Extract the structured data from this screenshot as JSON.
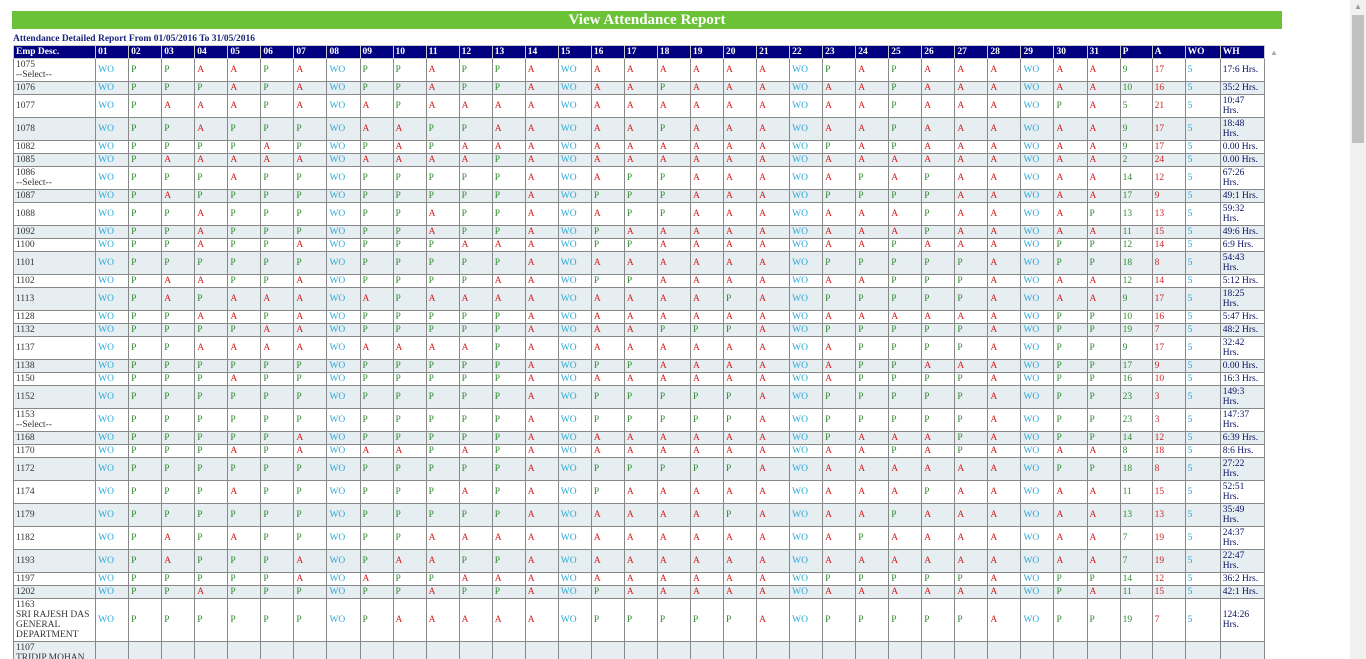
{
  "title": "View Attendance Report",
  "caption": "Attendance Detailed Report From 01/05/2016 To 31/05/2016",
  "columns": [
    "Emp Desc.",
    "01",
    "02",
    "03",
    "04",
    "05",
    "06",
    "07",
    "08",
    "09",
    "10",
    "11",
    "12",
    "13",
    "14",
    "15",
    "16",
    "17",
    "18",
    "19",
    "20",
    "21",
    "22",
    "23",
    "24",
    "25",
    "26",
    "27",
    "28",
    "29",
    "30",
    "31",
    "P",
    "A",
    "WO",
    "WH"
  ],
  "colors": {
    "title_bar": "#6cc236",
    "header": "#000080",
    "WO": "#2aa7d6",
    "P": "#2e8b2e",
    "A": "#d32222",
    "wh": "#0a1060"
  },
  "rows": [
    {
      "emp": [
        "1075",
        "--Select--"
      ],
      "days": [
        "WO",
        "P",
        "P",
        "A",
        "A",
        "P",
        "A",
        "WO",
        "P",
        "P",
        "A",
        "P",
        "P",
        "A",
        "WO",
        "A",
        "A",
        "A",
        "A",
        "A",
        "A",
        "WO",
        "P",
        "A",
        "P",
        "A",
        "A",
        "A",
        "WO",
        "A",
        "A"
      ],
      "p": "9",
      "a": "17",
      "wo": "5",
      "wh": "17:6 Hrs."
    },
    {
      "emp": [
        "1076"
      ],
      "days": [
        "WO",
        "P",
        "P",
        "P",
        "A",
        "P",
        "A",
        "WO",
        "P",
        "P",
        "A",
        "P",
        "P",
        "A",
        "WO",
        "A",
        "A",
        "P",
        "A",
        "A",
        "A",
        "WO",
        "A",
        "A",
        "P",
        "A",
        "A",
        "A",
        "WO",
        "A",
        "A"
      ],
      "p": "10",
      "a": "16",
      "wo": "5",
      "wh": "35:2 Hrs."
    },
    {
      "emp": [
        "1077"
      ],
      "days": [
        "WO",
        "P",
        "A",
        "A",
        "A",
        "P",
        "A",
        "WO",
        "A",
        "P",
        "A",
        "A",
        "A",
        "A",
        "WO",
        "A",
        "A",
        "A",
        "A",
        "A",
        "A",
        "WO",
        "A",
        "A",
        "P",
        "A",
        "A",
        "A",
        "WO",
        "P",
        "A"
      ],
      "p": "5",
      "a": "21",
      "wo": "5",
      "wh": "10:47 Hrs."
    },
    {
      "emp": [
        "1078"
      ],
      "days": [
        "WO",
        "P",
        "P",
        "A",
        "P",
        "P",
        "P",
        "WO",
        "A",
        "A",
        "P",
        "P",
        "A",
        "A",
        "WO",
        "A",
        "A",
        "P",
        "A",
        "A",
        "A",
        "WO",
        "A",
        "A",
        "P",
        "A",
        "A",
        "A",
        "WO",
        "A",
        "A"
      ],
      "p": "9",
      "a": "17",
      "wo": "5",
      "wh": "18:48 Hrs."
    },
    {
      "emp": [
        "1082"
      ],
      "days": [
        "WO",
        "P",
        "P",
        "P",
        "P",
        "A",
        "P",
        "WO",
        "P",
        "A",
        "P",
        "A",
        "A",
        "A",
        "WO",
        "A",
        "A",
        "A",
        "A",
        "A",
        "A",
        "WO",
        "P",
        "A",
        "P",
        "A",
        "A",
        "A",
        "WO",
        "A",
        "A"
      ],
      "p": "9",
      "a": "17",
      "wo": "5",
      "wh": "0.00 Hrs."
    },
    {
      "emp": [
        "1085"
      ],
      "days": [
        "WO",
        "P",
        "A",
        "A",
        "A",
        "A",
        "A",
        "WO",
        "A",
        "A",
        "A",
        "A",
        "P",
        "A",
        "WO",
        "A",
        "A",
        "A",
        "A",
        "A",
        "A",
        "WO",
        "A",
        "A",
        "A",
        "A",
        "A",
        "A",
        "WO",
        "A",
        "A"
      ],
      "p": "2",
      "a": "24",
      "wo": "5",
      "wh": "0.00 Hrs."
    },
    {
      "emp": [
        "1086",
        "--Select--"
      ],
      "days": [
        "WO",
        "P",
        "P",
        "P",
        "A",
        "P",
        "P",
        "WO",
        "P",
        "P",
        "P",
        "P",
        "P",
        "A",
        "WO",
        "A",
        "P",
        "P",
        "A",
        "A",
        "A",
        "WO",
        "A",
        "P",
        "A",
        "P",
        "A",
        "A",
        "WO",
        "A",
        "A"
      ],
      "p": "14",
      "a": "12",
      "wo": "5",
      "wh": "67:26 Hrs."
    },
    {
      "emp": [
        "1087"
      ],
      "days": [
        "WO",
        "P",
        "A",
        "P",
        "P",
        "P",
        "P",
        "WO",
        "P",
        "P",
        "P",
        "P",
        "P",
        "A",
        "WO",
        "P",
        "P",
        "P",
        "A",
        "A",
        "A",
        "WO",
        "P",
        "P",
        "P",
        "P",
        "A",
        "A",
        "WO",
        "A",
        "A"
      ],
      "p": "17",
      "a": "9",
      "wo": "5",
      "wh": "49:1 Hrs."
    },
    {
      "emp": [
        "1088"
      ],
      "days": [
        "WO",
        "P",
        "P",
        "A",
        "P",
        "P",
        "P",
        "WO",
        "P",
        "P",
        "A",
        "P",
        "P",
        "A",
        "WO",
        "A",
        "P",
        "P",
        "A",
        "A",
        "A",
        "WO",
        "A",
        "A",
        "A",
        "P",
        "A",
        "A",
        "WO",
        "A",
        "P"
      ],
      "p": "13",
      "a": "13",
      "wo": "5",
      "wh": "59:32 Hrs."
    },
    {
      "emp": [
        "1092"
      ],
      "days": [
        "WO",
        "P",
        "P",
        "A",
        "P",
        "P",
        "P",
        "WO",
        "P",
        "P",
        "A",
        "P",
        "P",
        "A",
        "WO",
        "P",
        "A",
        "A",
        "A",
        "A",
        "A",
        "WO",
        "A",
        "A",
        "A",
        "P",
        "A",
        "A",
        "WO",
        "A",
        "A"
      ],
      "p": "11",
      "a": "15",
      "wo": "5",
      "wh": "49:6 Hrs."
    },
    {
      "emp": [
        "1100"
      ],
      "days": [
        "WO",
        "P",
        "P",
        "A",
        "P",
        "P",
        "A",
        "WO",
        "P",
        "P",
        "P",
        "A",
        "A",
        "A",
        "WO",
        "P",
        "P",
        "A",
        "A",
        "A",
        "A",
        "WO",
        "A",
        "A",
        "P",
        "A",
        "A",
        "A",
        "WO",
        "P",
        "P"
      ],
      "p": "12",
      "a": "14",
      "wo": "5",
      "wh": "6:9 Hrs."
    },
    {
      "emp": [
        "1101"
      ],
      "days": [
        "WO",
        "P",
        "P",
        "P",
        "P",
        "P",
        "P",
        "WO",
        "P",
        "P",
        "P",
        "P",
        "P",
        "A",
        "WO",
        "A",
        "A",
        "A",
        "A",
        "A",
        "A",
        "WO",
        "P",
        "P",
        "P",
        "P",
        "P",
        "A",
        "WO",
        "P",
        "P"
      ],
      "p": "18",
      "a": "8",
      "wo": "5",
      "wh": "54:43 Hrs."
    },
    {
      "emp": [
        "1102"
      ],
      "days": [
        "WO",
        "P",
        "A",
        "A",
        "P",
        "P",
        "A",
        "WO",
        "P",
        "P",
        "P",
        "P",
        "A",
        "A",
        "WO",
        "P",
        "P",
        "A",
        "A",
        "A",
        "A",
        "WO",
        "A",
        "A",
        "P",
        "P",
        "P",
        "A",
        "WO",
        "A",
        "A"
      ],
      "p": "12",
      "a": "14",
      "wo": "5",
      "wh": "5:12 Hrs."
    },
    {
      "emp": [
        "1113"
      ],
      "days": [
        "WO",
        "P",
        "A",
        "P",
        "A",
        "A",
        "A",
        "WO",
        "A",
        "P",
        "A",
        "A",
        "A",
        "A",
        "WO",
        "A",
        "A",
        "A",
        "A",
        "P",
        "A",
        "WO",
        "P",
        "P",
        "P",
        "P",
        "P",
        "A",
        "WO",
        "A",
        "A"
      ],
      "p": "9",
      "a": "17",
      "wo": "5",
      "wh": "18:25 Hrs."
    },
    {
      "emp": [
        "1128"
      ],
      "days": [
        "WO",
        "P",
        "P",
        "A",
        "A",
        "P",
        "A",
        "WO",
        "P",
        "P",
        "P",
        "P",
        "P",
        "A",
        "WO",
        "A",
        "A",
        "A",
        "A",
        "A",
        "A",
        "WO",
        "A",
        "A",
        "A",
        "A",
        "A",
        "A",
        "WO",
        "P",
        "P"
      ],
      "p": "10",
      "a": "16",
      "wo": "5",
      "wh": "5:47 Hrs."
    },
    {
      "emp": [
        "1132"
      ],
      "days": [
        "WO",
        "P",
        "P",
        "P",
        "P",
        "A",
        "A",
        "WO",
        "P",
        "P",
        "P",
        "P",
        "P",
        "A",
        "WO",
        "A",
        "A",
        "P",
        "P",
        "P",
        "A",
        "WO",
        "P",
        "P",
        "P",
        "P",
        "P",
        "A",
        "WO",
        "P",
        "P"
      ],
      "p": "19",
      "a": "7",
      "wo": "5",
      "wh": "48:2 Hrs."
    },
    {
      "emp": [
        "1137"
      ],
      "days": [
        "WO",
        "P",
        "P",
        "A",
        "A",
        "A",
        "A",
        "WO",
        "A",
        "A",
        "A",
        "A",
        "P",
        "A",
        "WO",
        "A",
        "A",
        "A",
        "A",
        "A",
        "A",
        "WO",
        "A",
        "P",
        "P",
        "P",
        "P",
        "A",
        "WO",
        "P",
        "P"
      ],
      "p": "9",
      "a": "17",
      "wo": "5",
      "wh": "32:42 Hrs."
    },
    {
      "emp": [
        "1138"
      ],
      "days": [
        "WO",
        "P",
        "P",
        "P",
        "P",
        "P",
        "P",
        "WO",
        "P",
        "P",
        "P",
        "P",
        "P",
        "A",
        "WO",
        "P",
        "P",
        "A",
        "A",
        "A",
        "A",
        "WO",
        "A",
        "P",
        "P",
        "A",
        "A",
        "A",
        "WO",
        "P",
        "P"
      ],
      "p": "17",
      "a": "9",
      "wo": "5",
      "wh": "0.00 Hrs."
    },
    {
      "emp": [
        "1150"
      ],
      "days": [
        "WO",
        "P",
        "P",
        "P",
        "A",
        "P",
        "P",
        "WO",
        "P",
        "P",
        "P",
        "P",
        "P",
        "A",
        "WO",
        "A",
        "A",
        "A",
        "A",
        "A",
        "A",
        "WO",
        "A",
        "P",
        "P",
        "P",
        "P",
        "A",
        "WO",
        "P",
        "P"
      ],
      "p": "16",
      "a": "10",
      "wo": "5",
      "wh": "16:3 Hrs."
    },
    {
      "emp": [
        "1152"
      ],
      "days": [
        "WO",
        "P",
        "P",
        "P",
        "P",
        "P",
        "P",
        "WO",
        "P",
        "P",
        "P",
        "P",
        "P",
        "A",
        "WO",
        "P",
        "P",
        "P",
        "P",
        "P",
        "A",
        "WO",
        "P",
        "P",
        "P",
        "P",
        "P",
        "A",
        "WO",
        "P",
        "P"
      ],
      "p": "23",
      "a": "3",
      "wo": "5",
      "wh": "149:3 Hrs."
    },
    {
      "emp": [
        "1153",
        "--Select--"
      ],
      "days": [
        "WO",
        "P",
        "P",
        "P",
        "P",
        "P",
        "P",
        "WO",
        "P",
        "P",
        "P",
        "P",
        "P",
        "A",
        "WO",
        "P",
        "P",
        "P",
        "P",
        "P",
        "A",
        "WO",
        "P",
        "P",
        "P",
        "P",
        "P",
        "A",
        "WO",
        "P",
        "P"
      ],
      "p": "23",
      "a": "3",
      "wo": "5",
      "wh": "147:37 Hrs."
    },
    {
      "emp": [
        "1168"
      ],
      "days": [
        "WO",
        "P",
        "P",
        "P",
        "P",
        "P",
        "A",
        "WO",
        "P",
        "P",
        "P",
        "P",
        "P",
        "A",
        "WO",
        "A",
        "A",
        "A",
        "A",
        "A",
        "A",
        "WO",
        "P",
        "A",
        "A",
        "A",
        "P",
        "A",
        "WO",
        "P",
        "P"
      ],
      "p": "14",
      "a": "12",
      "wo": "5",
      "wh": "6:39 Hrs."
    },
    {
      "emp": [
        "1170"
      ],
      "days": [
        "WO",
        "P",
        "P",
        "P",
        "A",
        "P",
        "A",
        "WO",
        "A",
        "A",
        "P",
        "A",
        "P",
        "A",
        "WO",
        "A",
        "A",
        "A",
        "A",
        "A",
        "A",
        "WO",
        "A",
        "A",
        "P",
        "A",
        "P",
        "A",
        "WO",
        "A",
        "A"
      ],
      "p": "8",
      "a": "18",
      "wo": "5",
      "wh": "8:6 Hrs."
    },
    {
      "emp": [
        "1172"
      ],
      "days": [
        "WO",
        "P",
        "P",
        "P",
        "P",
        "P",
        "P",
        "WO",
        "P",
        "P",
        "P",
        "P",
        "P",
        "A",
        "WO",
        "P",
        "P",
        "P",
        "P",
        "P",
        "A",
        "WO",
        "A",
        "A",
        "A",
        "A",
        "A",
        "A",
        "WO",
        "P",
        "P"
      ],
      "p": "18",
      "a": "8",
      "wo": "5",
      "wh": "27:22 Hrs."
    },
    {
      "emp": [
        "1174"
      ],
      "days": [
        "WO",
        "P",
        "P",
        "P",
        "A",
        "P",
        "P",
        "WO",
        "P",
        "P",
        "P",
        "A",
        "P",
        "A",
        "WO",
        "P",
        "A",
        "A",
        "A",
        "A",
        "A",
        "WO",
        "A",
        "A",
        "A",
        "P",
        "A",
        "A",
        "WO",
        "A",
        "A"
      ],
      "p": "11",
      "a": "15",
      "wo": "5",
      "wh": "52:51 Hrs."
    },
    {
      "emp": [
        "1179"
      ],
      "days": [
        "WO",
        "P",
        "P",
        "P",
        "P",
        "P",
        "P",
        "WO",
        "P",
        "P",
        "P",
        "P",
        "P",
        "A",
        "WO",
        "A",
        "A",
        "A",
        "A",
        "P",
        "A",
        "WO",
        "A",
        "A",
        "P",
        "A",
        "A",
        "A",
        "WO",
        "A",
        "A"
      ],
      "p": "13",
      "a": "13",
      "wo": "5",
      "wh": "35:49 Hrs."
    },
    {
      "emp": [
        "1182"
      ],
      "days": [
        "WO",
        "P",
        "A",
        "P",
        "A",
        "P",
        "P",
        "WO",
        "P",
        "P",
        "A",
        "A",
        "A",
        "A",
        "WO",
        "A",
        "A",
        "A",
        "A",
        "A",
        "A",
        "WO",
        "A",
        "P",
        "A",
        "A",
        "A",
        "A",
        "WO",
        "A",
        "A"
      ],
      "p": "7",
      "a": "19",
      "wo": "5",
      "wh": "24:37 Hrs."
    },
    {
      "emp": [
        "1193"
      ],
      "days": [
        "WO",
        "P",
        "A",
        "P",
        "P",
        "P",
        "A",
        "WO",
        "P",
        "A",
        "A",
        "P",
        "P",
        "A",
        "WO",
        "A",
        "A",
        "A",
        "A",
        "A",
        "A",
        "WO",
        "A",
        "A",
        "A",
        "A",
        "A",
        "A",
        "WO",
        "A",
        "A"
      ],
      "p": "7",
      "a": "19",
      "wo": "5",
      "wh": "22:47 Hrs."
    },
    {
      "emp": [
        "1197"
      ],
      "days": [
        "WO",
        "P",
        "P",
        "P",
        "P",
        "P",
        "A",
        "WO",
        "A",
        "P",
        "P",
        "A",
        "A",
        "A",
        "WO",
        "A",
        "A",
        "A",
        "A",
        "A",
        "A",
        "WO",
        "P",
        "P",
        "P",
        "P",
        "P",
        "A",
        "WO",
        "P",
        "P"
      ],
      "p": "14",
      "a": "12",
      "wo": "5",
      "wh": "36:2 Hrs."
    },
    {
      "emp": [
        "1202"
      ],
      "days": [
        "WO",
        "P",
        "P",
        "A",
        "P",
        "P",
        "P",
        "WO",
        "P",
        "P",
        "A",
        "P",
        "P",
        "A",
        "WO",
        "P",
        "A",
        "A",
        "A",
        "A",
        "A",
        "WO",
        "A",
        "A",
        "A",
        "A",
        "A",
        "A",
        "WO",
        "P",
        "A"
      ],
      "p": "11",
      "a": "15",
      "wo": "5",
      "wh": "42:1 Hrs."
    },
    {
      "emp": [
        "1163",
        "SRI RAJESH DAS",
        "GENERAL",
        "DEPARTMENT"
      ],
      "days": [
        "WO",
        "P",
        "P",
        "P",
        "P",
        "P",
        "P",
        "WO",
        "P",
        "A",
        "A",
        "A",
        "A",
        "A",
        "WO",
        "P",
        "P",
        "P",
        "P",
        "P",
        "A",
        "WO",
        "P",
        "P",
        "P",
        "P",
        "P",
        "A",
        "WO",
        "P",
        "P"
      ],
      "p": "19",
      "a": "7",
      "wo": "5",
      "wh": "124:26 Hrs."
    },
    {
      "emp": [
        "1107",
        "TRIDIP MOHAN"
      ],
      "days": [],
      "p": "",
      "a": "",
      "wo": "",
      "wh": ""
    }
  ]
}
